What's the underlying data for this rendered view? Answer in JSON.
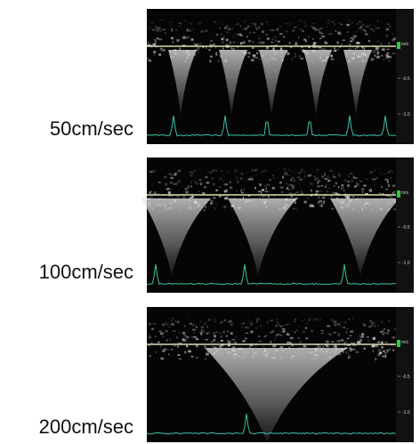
{
  "panels": [
    {
      "speed_label": "50cm/sec",
      "scale": {
        "unit": "m/s",
        "ticks": [
          "-0.5",
          "-1.0"
        ]
      }
    },
    {
      "speed_label": "100cm/sec",
      "scale": {
        "unit": "m/s",
        "ticks": [
          "-0.5",
          "-1.0"
        ]
      }
    },
    {
      "speed_label": "200cm/sec",
      "scale": {
        "unit": "m/s",
        "ticks": [
          "-0.5",
          "-1.0"
        ]
      }
    }
  ]
}
